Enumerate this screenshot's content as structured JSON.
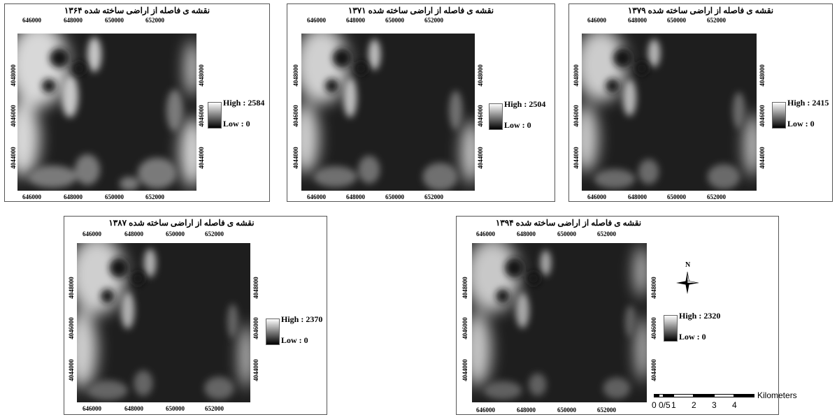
{
  "panels": [
    {
      "title": "نقشه ی فاصله از اراضی ساخته شده ۱۳۶۴",
      "legend": {
        "high": "High : 2584",
        "low": "Low : 0"
      }
    },
    {
      "title": "نقشه ی فاصله از اراضی ساخته شده ۱۳۷۱",
      "legend": {
        "high": "High : 2504",
        "low": "Low : 0"
      }
    },
    {
      "title": "نقشه ی فاصله از اراضی ساخته شده ۱۳۷۹",
      "legend": {
        "high": "High : 2415",
        "low": "Low : 0"
      }
    },
    {
      "title": "نقشه ی فاصله از اراضی ساخته شده ۱۳۸۷",
      "legend": {
        "high": "High : 2370",
        "low": "Low : 0"
      }
    },
    {
      "title": "نقشه ی فاصله از اراضی ساخته شده ۱۳۹۴",
      "legend": {
        "high": "High : 2320",
        "low": "Low : 0"
      }
    }
  ],
  "axis": {
    "x_ticks": [
      "646000",
      "648000",
      "650000",
      "652000"
    ],
    "y_ticks": [
      "4048000",
      "4046000",
      "4044000"
    ]
  },
  "north_arrow": {
    "label": "N"
  },
  "scale_bar": {
    "labels": [
      "0",
      "0/5",
      "1",
      "2",
      "3",
      "4"
    ],
    "unit": "Kilometers"
  },
  "colors": {
    "ramp_high": "#ffffff",
    "ramp_low": "#000000",
    "map_background": "#1e1e1e"
  }
}
